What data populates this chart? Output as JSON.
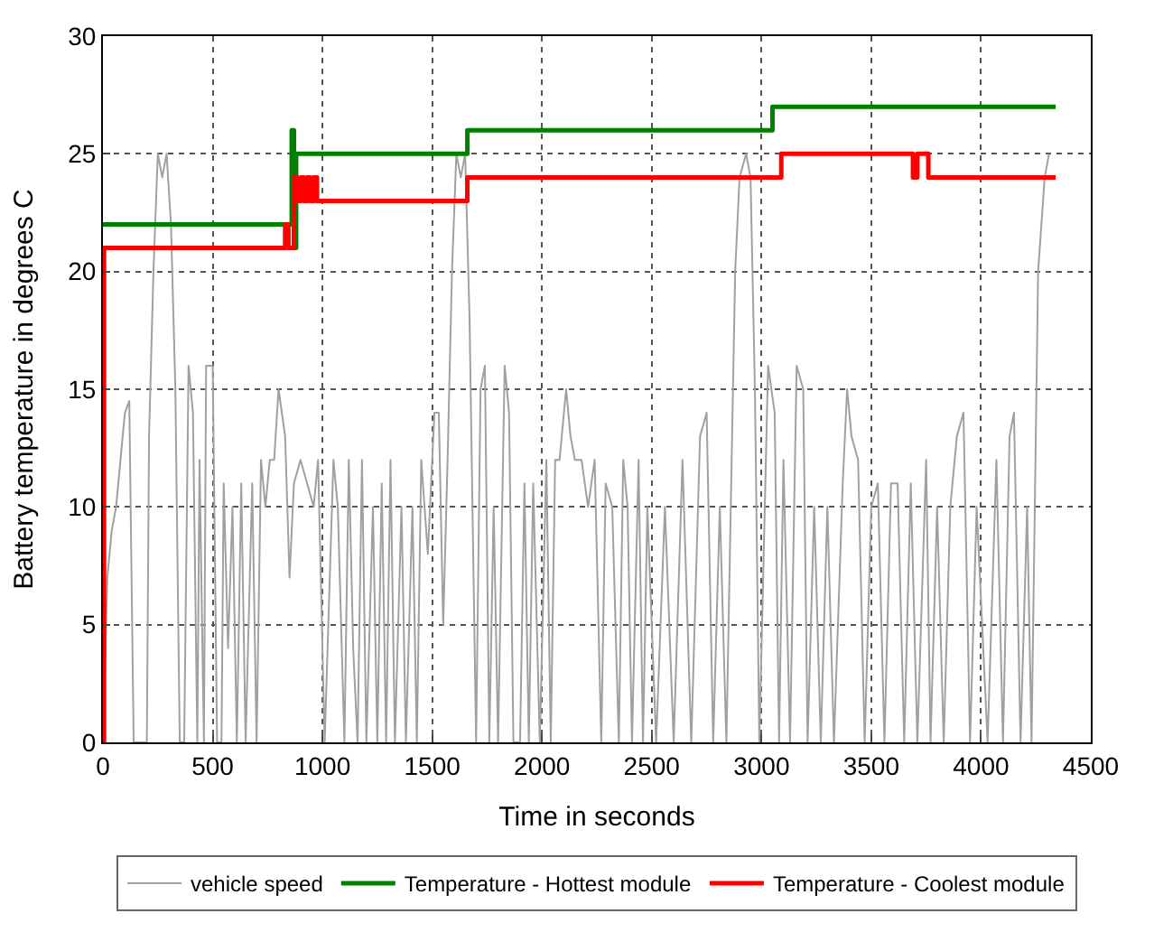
{
  "chart_data": {
    "type": "line",
    "xlabel": "Time in seconds",
    "ylabel": "Battery temperature in degrees C",
    "xlim": [
      0,
      4500
    ],
    "xticks": [
      0,
      500,
      1000,
      1500,
      2000,
      2500,
      3000,
      3500,
      4000,
      4500
    ],
    "ylim": [
      0,
      30
    ],
    "yticks": [
      0,
      5,
      10,
      15,
      20,
      25,
      30
    ],
    "grid": true,
    "legend": "bottom",
    "line_style": "solid",
    "series": [
      {
        "name": "vehicle speed",
        "color": "#a0a0a0",
        "x": [
          0,
          20,
          40,
          60,
          80,
          100,
          120,
          140,
          160,
          200,
          210,
          230,
          250,
          270,
          290,
          310,
          330,
          350,
          370,
          390,
          410,
          430,
          440,
          460,
          470,
          500,
          520,
          540,
          550,
          570,
          590,
          610,
          630,
          650,
          680,
          700,
          720,
          740,
          760,
          780,
          800,
          830,
          850,
          870,
          900,
          930,
          960,
          980,
          1010,
          1050,
          1070,
          1100,
          1120,
          1140,
          1160,
          1180,
          1200,
          1230,
          1250,
          1270,
          1290,
          1310,
          1330,
          1360,
          1380,
          1410,
          1430,
          1450,
          1480,
          1510,
          1530,
          1550,
          1570,
          1590,
          1610,
          1630,
          1650,
          1670,
          1700,
          1720,
          1740,
          1760,
          1780,
          1800,
          1830,
          1850,
          1870,
          1900,
          1920,
          1940,
          1960,
          1990,
          2020,
          2040,
          2060,
          2080,
          2110,
          2130,
          2150,
          2180,
          2210,
          2240,
          2270,
          2290,
          2320,
          2350,
          2370,
          2390,
          2410,
          2440,
          2460,
          2480,
          2520,
          2560,
          2600,
          2640,
          2680,
          2720,
          2750,
          2780,
          2810,
          2840,
          2880,
          2900,
          2930,
          2950,
          2970,
          2990,
          3030,
          3060,
          3080,
          3100,
          3130,
          3160,
          3190,
          3210,
          3240,
          3270,
          3300,
          3330,
          3370,
          3390,
          3410,
          3440,
          3470,
          3500,
          3530,
          3560,
          3590,
          3620,
          3650,
          3680,
          3710,
          3750,
          3770,
          3800,
          3830,
          3860,
          3890,
          3920,
          3950,
          3980,
          4030,
          4070,
          4100,
          4130,
          4150,
          4180,
          4210,
          4230,
          4260,
          4290,
          4310
        ],
        "values": [
          0,
          7,
          9,
          10,
          12,
          14,
          14.5,
          0,
          0,
          0,
          13,
          20,
          25,
          24,
          25,
          22,
          15,
          0,
          0,
          16,
          14,
          0,
          12,
          0,
          16,
          16,
          0,
          0,
          11,
          4,
          10,
          0,
          11,
          0,
          11,
          0,
          12,
          10,
          12,
          12,
          15,
          13,
          7,
          11,
          12,
          11,
          10,
          12,
          0,
          12,
          10,
          0,
          12,
          4,
          0,
          12,
          0,
          10,
          0,
          11,
          0,
          12,
          0,
          10,
          0,
          10,
          0,
          12,
          8,
          14,
          14,
          5,
          12,
          20,
          25,
          24,
          25,
          18,
          0,
          15,
          16,
          0,
          10,
          0,
          16,
          14,
          0,
          0,
          11,
          0,
          11,
          0,
          12,
          0,
          12,
          12,
          15,
          13,
          12,
          12,
          10,
          12,
          0,
          11,
          10,
          0,
          12,
          10,
          0,
          12,
          0,
          10,
          0,
          10,
          0,
          12,
          0,
          13,
          14,
          0,
          10,
          0,
          20,
          24,
          25,
          24,
          15,
          0,
          16,
          14,
          0,
          12,
          0,
          16,
          15,
          0,
          10,
          0,
          10,
          0,
          11,
          15,
          13,
          12,
          0,
          10,
          11,
          0,
          11,
          11,
          0,
          11,
          0,
          12,
          0,
          10,
          0,
          10,
          13,
          14,
          0,
          10,
          0,
          12,
          0,
          13,
          14,
          0,
          10,
          0,
          20,
          24,
          25
        ]
      },
      {
        "name": "Temperature - Hottest module",
        "type": "step",
        "color": "#008000",
        "x": [
          0,
          860,
          870,
          880,
          1660,
          3050,
          4340
        ],
        "values": [
          22,
          26,
          21,
          25,
          26,
          27,
          27
        ]
      },
      {
        "name": "Temperature - Coolest module",
        "type": "step",
        "color": "#ff0000",
        "x": [
          0,
          5,
          830,
          845,
          870,
          885,
          900,
          915,
          930,
          945,
          960,
          975,
          990,
          1660,
          3090,
          3690,
          3710,
          3760,
          4340
        ],
        "values": [
          0,
          21,
          22,
          21,
          24,
          23,
          24,
          23,
          24,
          23,
          24,
          23,
          23,
          24,
          25,
          24,
          25,
          24,
          24
        ]
      }
    ]
  }
}
